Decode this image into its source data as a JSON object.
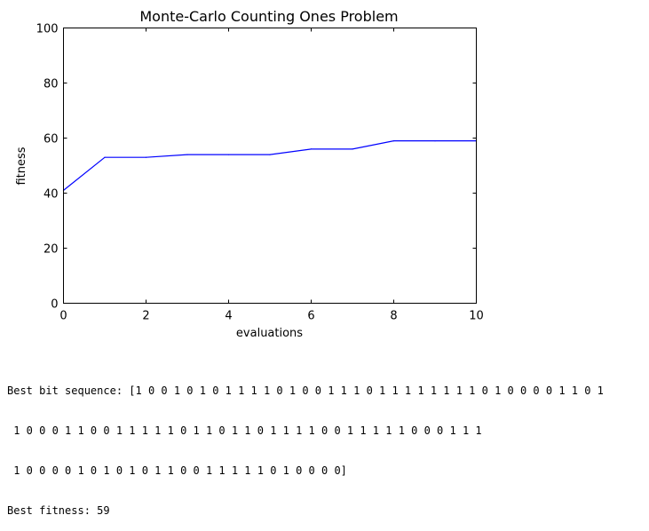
{
  "chart_data": {
    "type": "line",
    "title": "Monte-Carlo Counting Ones Problem",
    "xlabel": "evaluations",
    "ylabel": "fitness",
    "xlim": [
      0,
      10
    ],
    "ylim": [
      0,
      100
    ],
    "xticks": [
      "0",
      "2",
      "4",
      "6",
      "8",
      "10"
    ],
    "yticks": [
      "0",
      "20",
      "40",
      "60",
      "80",
      "100"
    ],
    "grid": false,
    "series": [
      {
        "color": "#0000ff",
        "x": [
          0,
          1,
          2,
          3,
          4,
          5,
          6,
          7,
          8,
          9,
          10
        ],
        "y": [
          41,
          53,
          53,
          54,
          54,
          54,
          56,
          56,
          59,
          59,
          59
        ]
      }
    ]
  },
  "output": {
    "line1": "Best bit sequence: [1 0 0 1 0 1 0 1 1 1 1 0 1 0 0 1 1 1 0 1 1 1 1 1 1 1 1 0 1 0 0 0 0 1 1 0 1",
    "line2": " 1 0 0 0 1 1 0 0 1 1 1 1 1 0 1 1 0 1 1 0 1 1 1 1 0 0 1 1 1 1 1 0 0 0 1 1 1",
    "line3": " 1 0 0 0 0 1 0 1 0 1 0 1 1 0 0 1 1 1 1 1 0 1 0 0 0 0]",
    "line4": "Best fitness: 59"
  }
}
